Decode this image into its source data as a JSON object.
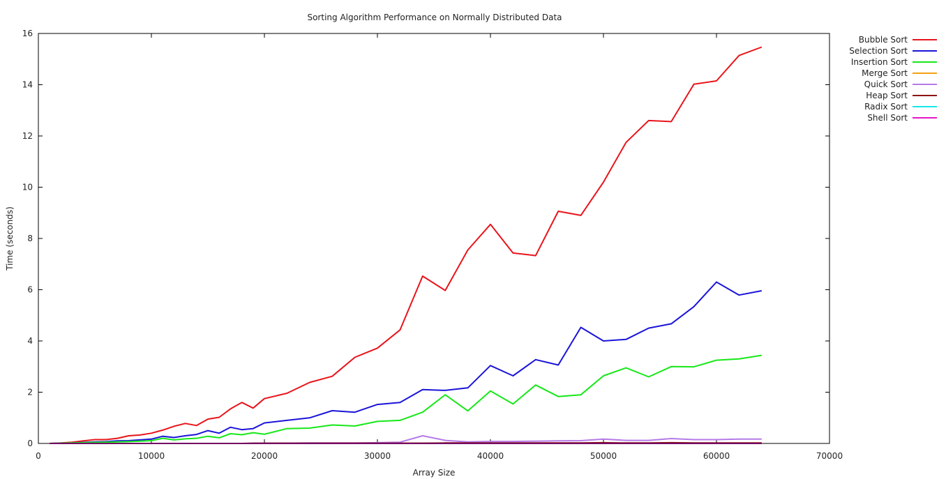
{
  "chart_data": {
    "type": "line",
    "title": "Sorting Algorithm Performance on Normally Distributed Data",
    "xlabel": "Array Size",
    "ylabel": "Time (seconds)",
    "xlim": [
      0,
      70000
    ],
    "ylim": [
      0,
      16
    ],
    "xticks": [
      0,
      10000,
      20000,
      30000,
      40000,
      50000,
      60000,
      70000
    ],
    "yticks": [
      0,
      2,
      4,
      6,
      8,
      10,
      12,
      14,
      16
    ],
    "grid": false,
    "legend_position": "top-right (outside plot)",
    "x": [
      1000,
      2000,
      3000,
      4000,
      5000,
      6000,
      7000,
      8000,
      9000,
      10000,
      11000,
      12000,
      13000,
      14000,
      15000,
      16000,
      17000,
      18000,
      19000,
      20000,
      22000,
      24000,
      26000,
      28000,
      30000,
      32000,
      34000,
      36000,
      38000,
      40000,
      42000,
      44000,
      46000,
      48000,
      50000,
      52000,
      54000,
      56000,
      58000,
      60000,
      62000,
      64000
    ],
    "series": [
      {
        "name": "Bubble Sort",
        "color": "#e8141b",
        "values": [
          0.0,
          0.02,
          0.05,
          0.1,
          0.15,
          0.15,
          0.2,
          0.3,
          0.33,
          0.4,
          0.52,
          0.67,
          0.78,
          0.7,
          0.95,
          1.02,
          1.35,
          1.6,
          1.38,
          1.75,
          1.96,
          2.38,
          2.62,
          3.36,
          3.72,
          4.43,
          6.53,
          5.97,
          7.55,
          8.55,
          7.43,
          7.33,
          9.06,
          8.9,
          10.2,
          11.75,
          12.6,
          12.56,
          14.02,
          14.15,
          15.14,
          15.47
        ]
      },
      {
        "name": "Selection Sort",
        "color": "#1a14d8",
        "values": [
          0.0,
          0.01,
          0.02,
          0.04,
          0.06,
          0.07,
          0.1,
          0.11,
          0.14,
          0.17,
          0.28,
          0.23,
          0.3,
          0.35,
          0.5,
          0.4,
          0.63,
          0.54,
          0.58,
          0.8,
          0.9,
          1.0,
          1.28,
          1.22,
          1.52,
          1.6,
          2.1,
          2.07,
          2.17,
          3.04,
          2.64,
          3.27,
          3.06,
          4.53,
          4.0,
          4.06,
          4.5,
          4.67,
          5.34,
          6.3,
          5.79,
          5.96
        ]
      },
      {
        "name": "Insertion Sort",
        "color": "#16e818",
        "values": [
          0.0,
          0.01,
          0.02,
          0.03,
          0.04,
          0.05,
          0.06,
          0.07,
          0.09,
          0.11,
          0.2,
          0.14,
          0.18,
          0.2,
          0.28,
          0.22,
          0.38,
          0.34,
          0.42,
          0.36,
          0.58,
          0.6,
          0.72,
          0.68,
          0.86,
          0.9,
          1.22,
          1.9,
          1.27,
          2.05,
          1.54,
          2.28,
          1.83,
          1.9,
          2.64,
          2.95,
          2.6,
          3.0,
          2.99,
          3.25,
          3.3,
          3.44
        ]
      },
      {
        "name": "Merge Sort",
        "color": "#f4a114",
        "values": [
          0.0,
          0.0,
          0.0,
          0.0,
          0.0,
          0.0,
          0.0,
          0.0,
          0.0,
          0.0,
          0.0,
          0.0,
          0.0,
          0.0,
          0.0,
          0.0,
          0.0,
          0.0,
          0.0,
          0.0,
          0.01,
          0.01,
          0.01,
          0.01,
          0.01,
          0.01,
          0.01,
          0.01,
          0.01,
          0.01,
          0.01,
          0.01,
          0.01,
          0.01,
          0.01,
          0.01,
          0.01,
          0.01,
          0.01,
          0.01,
          0.01,
          0.01
        ]
      },
      {
        "name": "Quick Sort",
        "color": "#b57ae8",
        "values": [
          0.0,
          0.0,
          0.0,
          0.0,
          0.0,
          0.0,
          0.0,
          0.0,
          0.0,
          0.0,
          0.0,
          0.0,
          0.0,
          0.0,
          0.0,
          0.0,
          0.0,
          0.0,
          0.0,
          0.01,
          0.01,
          0.02,
          0.02,
          0.02,
          0.03,
          0.05,
          0.3,
          0.12,
          0.06,
          0.08,
          0.08,
          0.09,
          0.1,
          0.11,
          0.17,
          0.12,
          0.12,
          0.19,
          0.15,
          0.15,
          0.17,
          0.17
        ]
      },
      {
        "name": "Heap Sort",
        "color": "#8f1212",
        "values": [
          0.0,
          0.0,
          0.0,
          0.0,
          0.0,
          0.0,
          0.0,
          0.0,
          0.0,
          0.0,
          0.0,
          0.0,
          0.0,
          0.0,
          0.0,
          0.0,
          0.0,
          0.0,
          0.01,
          0.01,
          0.01,
          0.01,
          0.01,
          0.01,
          0.01,
          0.01,
          0.01,
          0.02,
          0.02,
          0.02,
          0.02,
          0.02,
          0.02,
          0.02,
          0.03,
          0.02,
          0.02,
          0.03,
          0.02,
          0.02,
          0.02,
          0.02
        ]
      },
      {
        "name": "Radix Sort",
        "color": "#14e8e8",
        "values": [
          0.0,
          0.0,
          0.0,
          0.0,
          0.0,
          0.0,
          0.0,
          0.0,
          0.0,
          0.0,
          0.0,
          0.0,
          0.0,
          0.0,
          0.0,
          0.0,
          0.0,
          0.0,
          0.0,
          0.0,
          0.0,
          0.0,
          0.0,
          0.0,
          0.0,
          0.0,
          0.0,
          0.0,
          0.0,
          0.0,
          0.0,
          0.0,
          0.0,
          0.0,
          0.0,
          0.0,
          0.0,
          0.0,
          0.0,
          0.0,
          0.0,
          0.0
        ]
      },
      {
        "name": "Shell Sort",
        "color": "#e814c8",
        "values": [
          0.0,
          0.0,
          0.0,
          0.0,
          0.0,
          0.0,
          0.0,
          0.0,
          0.0,
          0.0,
          0.0,
          0.0,
          0.0,
          0.0,
          0.0,
          0.0,
          0.0,
          0.0,
          0.0,
          0.0,
          0.0,
          0.0,
          0.0,
          0.0,
          0.0,
          0.0,
          0.0,
          0.0,
          0.0,
          0.0,
          0.0,
          0.0,
          0.0,
          0.0,
          0.0,
          0.0,
          0.0,
          0.0,
          0.0,
          0.0,
          0.0,
          0.0
        ]
      }
    ]
  }
}
